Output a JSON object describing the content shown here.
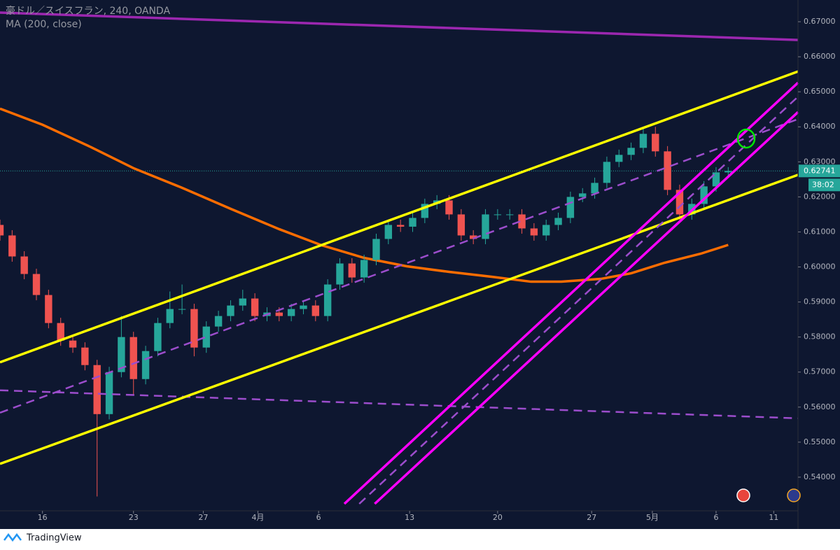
{
  "chart_data": {
    "type": "candlestick",
    "title": "豪ドル／スイスフラン, 240, OANDA",
    "subtitle": "MA (200, close)",
    "brand": "TradingView",
    "countdown": "38:02",
    "last_price": 0.62741,
    "up_color": "#26a69a",
    "down_color": "#ef5350",
    "xlim": [
      0,
      263
    ],
    "ylim": [
      0.5304,
      0.6762
    ],
    "xticks": [
      {
        "value": 14,
        "label": "16"
      },
      {
        "value": 44,
        "label": "23"
      },
      {
        "value": 67,
        "label": "27"
      },
      {
        "value": 85,
        "label": "4月"
      },
      {
        "value": 105,
        "label": "6"
      },
      {
        "value": 135,
        "label": "13"
      },
      {
        "value": 164,
        "label": "20"
      },
      {
        "value": 195,
        "label": "27"
      },
      {
        "value": 215,
        "label": "5月"
      },
      {
        "value": 236,
        "label": "6"
      },
      {
        "value": 255,
        "label": "11"
      }
    ],
    "yticks": [
      {
        "value": 0.54,
        "label": "0.54000"
      },
      {
        "value": 0.55,
        "label": "0.55000"
      },
      {
        "value": 0.56,
        "label": "0.56000"
      },
      {
        "value": 0.57,
        "label": "0.57000"
      },
      {
        "value": 0.58,
        "label": "0.58000"
      },
      {
        "value": 0.59,
        "label": "0.59000"
      },
      {
        "value": 0.6,
        "label": "0.60000"
      },
      {
        "value": 0.61,
        "label": "0.61000"
      },
      {
        "value": 0.62,
        "label": "0.62000"
      },
      {
        "value": 0.63,
        "label": "0.63000"
      },
      {
        "value": 0.64,
        "label": "0.64000"
      },
      {
        "value": 0.65,
        "label": "0.65000"
      },
      {
        "value": 0.66,
        "label": "0.66000"
      },
      {
        "value": 0.67,
        "label": "0.67000"
      }
    ],
    "candles": {
      "x": [
        0,
        4,
        8,
        12,
        16,
        20,
        24,
        28,
        32,
        36,
        40,
        44,
        48,
        52,
        56,
        60,
        64,
        68,
        72,
        76,
        80,
        84,
        88,
        92,
        96,
        100,
        104,
        108,
        112,
        116,
        120,
        124,
        128,
        132,
        136,
        140,
        144,
        148,
        152,
        156,
        160,
        164,
        168,
        172,
        176,
        180,
        184,
        188,
        192,
        196,
        200,
        204,
        208,
        212,
        216,
        220,
        224,
        228,
        232,
        236,
        240
      ],
      "open": [
        0.612,
        0.609,
        0.603,
        0.598,
        0.592,
        0.584,
        0.579,
        0.577,
        0.572,
        0.558,
        0.57,
        0.58,
        0.568,
        0.576,
        0.584,
        0.588,
        0.588,
        0.577,
        0.583,
        0.586,
        0.589,
        0.591,
        0.586,
        0.587,
        0.586,
        0.588,
        0.589,
        0.586,
        0.595,
        0.601,
        0.597,
        0.602,
        0.608,
        0.612,
        0.6115,
        0.614,
        0.618,
        0.619,
        0.615,
        0.609,
        0.608,
        0.615,
        0.615,
        0.615,
        0.611,
        0.609,
        0.612,
        0.614,
        0.62,
        0.621,
        0.624,
        0.63,
        0.632,
        0.634,
        0.638,
        0.633,
        0.622,
        0.615,
        0.618,
        0.623,
        0.627
      ],
      "high": [
        0.6135,
        0.6105,
        0.6045,
        0.5995,
        0.5935,
        0.5855,
        0.5805,
        0.5785,
        0.5735,
        0.5715,
        0.586,
        0.5815,
        0.5775,
        0.5855,
        0.593,
        0.595,
        0.5895,
        0.5845,
        0.5875,
        0.5905,
        0.5935,
        0.5925,
        0.5885,
        0.5885,
        0.5895,
        0.5905,
        0.5905,
        0.5965,
        0.6025,
        0.6025,
        0.6035,
        0.6095,
        0.6135,
        0.6135,
        0.6155,
        0.6195,
        0.6205,
        0.6205,
        0.6165,
        0.6105,
        0.6165,
        0.6165,
        0.6165,
        0.6165,
        0.6125,
        0.6135,
        0.6155,
        0.6215,
        0.6225,
        0.6255,
        0.6315,
        0.6335,
        0.6355,
        0.64,
        0.64,
        0.6345,
        0.6235,
        0.6195,
        0.6245,
        0.6285,
        0.6285
      ],
      "low": [
        0.6075,
        0.6015,
        0.5965,
        0.5905,
        0.5825,
        0.5775,
        0.5755,
        0.5705,
        0.5345,
        0.5565,
        0.5685,
        0.5635,
        0.5665,
        0.5745,
        0.5825,
        0.5865,
        0.5745,
        0.5755,
        0.5815,
        0.5845,
        0.5875,
        0.5845,
        0.5845,
        0.5845,
        0.5845,
        0.5865,
        0.5845,
        0.5845,
        0.5935,
        0.5955,
        0.5955,
        0.6005,
        0.6065,
        0.61,
        0.61,
        0.6125,
        0.6165,
        0.6135,
        0.6075,
        0.6065,
        0.6065,
        0.6135,
        0.6135,
        0.6095,
        0.6075,
        0.6075,
        0.6105,
        0.6125,
        0.6185,
        0.6195,
        0.6225,
        0.6285,
        0.6305,
        0.6325,
        0.6315,
        0.6205,
        0.6135,
        0.6135,
        0.6165,
        0.6215,
        0.6255
      ],
      "close": [
        0.609,
        0.603,
        0.598,
        0.592,
        0.584,
        0.579,
        0.577,
        0.572,
        0.558,
        0.57,
        0.58,
        0.568,
        0.576,
        0.584,
        0.588,
        0.588,
        0.577,
        0.583,
        0.586,
        0.589,
        0.591,
        0.586,
        0.587,
        0.586,
        0.588,
        0.589,
        0.586,
        0.595,
        0.601,
        0.597,
        0.602,
        0.608,
        0.612,
        0.6115,
        0.614,
        0.618,
        0.619,
        0.615,
        0.609,
        0.608,
        0.615,
        0.615,
        0.615,
        0.611,
        0.609,
        0.612,
        0.614,
        0.62,
        0.621,
        0.624,
        0.63,
        0.632,
        0.634,
        0.638,
        0.633,
        0.622,
        0.615,
        0.618,
        0.623,
        0.627,
        0.6274
      ]
    },
    "ma": {
      "color": "#ff6d00",
      "x": [
        0,
        14,
        30,
        44,
        60,
        76,
        92,
        106,
        120,
        134,
        148,
        162,
        175,
        185,
        198,
        208,
        219,
        231,
        240
      ],
      "values": [
        0.6452,
        0.6406,
        0.6342,
        0.6282,
        0.6226,
        0.6166,
        0.6108,
        0.6062,
        0.6026,
        0.6002,
        0.5986,
        0.5972,
        0.5958,
        0.5958,
        0.5966,
        0.5982,
        0.6012,
        0.6038,
        0.6063
      ]
    },
    "lines": [
      {
        "color": "#9c27b0",
        "dashed": false,
        "x": [
          0,
          263
        ],
        "y": [
          0.6726,
          0.6648
        ]
      },
      {
        "color": "#9c4dcc",
        "dashed": true,
        "x": [
          0,
          263
        ],
        "y": [
          0.5648,
          0.5568
        ]
      },
      {
        "color": "#9c4dcc",
        "dashed": true,
        "x": [
          0,
          263
        ],
        "y": [
          0.5584,
          0.6422
        ]
      },
      {
        "color": "#ffff00",
        "dashed": false,
        "x": [
          0,
          263
        ],
        "y": [
          0.5728,
          0.6558
        ]
      },
      {
        "color": "#ffff00",
        "dashed": false,
        "x": [
          0,
          263
        ],
        "y": [
          0.5438,
          0.6263
        ]
      },
      {
        "color": "#ff00ff",
        "dashed": false,
        "x": [
          113.5,
          263
        ],
        "y": [
          0.5324,
          0.6526
        ]
      },
      {
        "color": "#ff00ff",
        "dashed": false,
        "x": [
          123.5,
          263
        ],
        "y": [
          0.5324,
          0.6442
        ]
      },
      {
        "color": "#9c4dcc",
        "dashed": true,
        "x": [
          118.4,
          263
        ],
        "y": [
          0.5324,
          0.6486
        ]
      }
    ]
  }
}
